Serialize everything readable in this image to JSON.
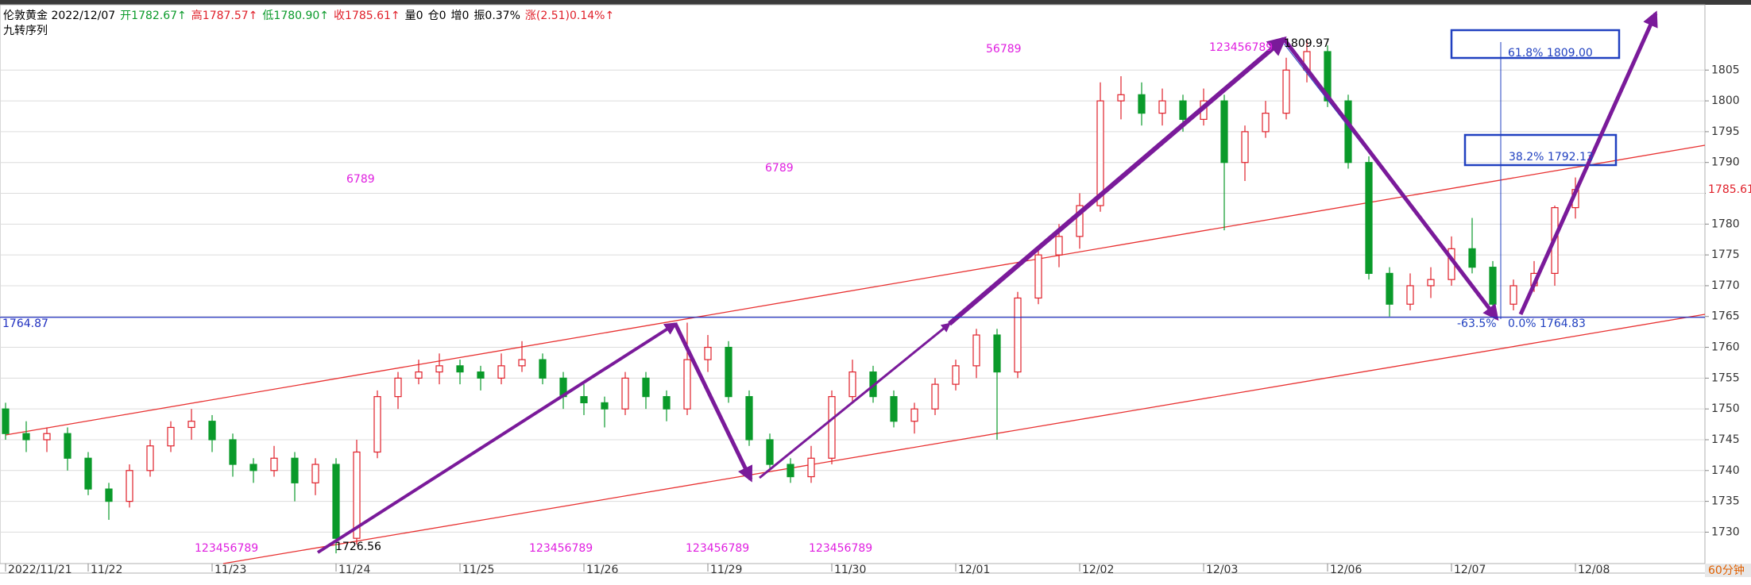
{
  "chart_data": {
    "type": "candlestick",
    "title_segments": [
      {
        "text": "伦敦黄金 2022/12/07",
        "color": "#000000"
      },
      {
        "text": "开1782.67↑",
        "color": "#0a9a2a"
      },
      {
        "text": "高1787.57↑",
        "color": "#e0202a"
      },
      {
        "text": "低1780.90↑",
        "color": "#0a9a2a"
      },
      {
        "text": "收1785.61↑",
        "color": "#e0202a"
      },
      {
        "text": "量0",
        "color": "#000000"
      },
      {
        "text": "仓0",
        "color": "#000000"
      },
      {
        "text": "增0",
        "color": "#000000"
      },
      {
        "text": "振0.37%",
        "color": "#000000"
      },
      {
        "text": "涨(2.51)0.14%↑",
        "color": "#e0202a"
      }
    ],
    "subtitle": "九转序列",
    "period": "60分钟",
    "categories": [
      "2022/11/21",
      null,
      null,
      null,
      "11/22",
      null,
      null,
      null,
      null,
      null,
      "11/23",
      null,
      null,
      null,
      null,
      null,
      "11/24",
      null,
      null,
      null,
      null,
      null,
      "11/25",
      null,
      null,
      null,
      null,
      null,
      "11/26",
      null,
      null,
      null,
      null,
      null,
      "11/29",
      null,
      null,
      null,
      null,
      null,
      "11/30",
      null,
      null,
      null,
      null,
      null,
      "12/01",
      null,
      null,
      null,
      null,
      null,
      "12/02",
      null,
      null,
      null,
      null,
      null,
      "12/03",
      null,
      null,
      null,
      null,
      null,
      "12/06",
      null,
      null,
      null,
      null,
      null,
      "12/07",
      null,
      null,
      null,
      null,
      null,
      "12/08"
    ],
    "open": [
      1750,
      1746,
      1745,
      1746,
      1742,
      1737,
      1735,
      1740,
      1744,
      1747,
      1748,
      1745,
      1741,
      1740,
      1742,
      1738,
      1741,
      1729,
      1743,
      1752,
      1755,
      1756,
      1757,
      1756,
      1755,
      1757,
      1758,
      1755,
      1752,
      1751,
      1750,
      1755,
      1752,
      1750,
      1758,
      1760,
      1752,
      1745,
      1741,
      1739,
      1742,
      1752,
      1756,
      1752,
      1748,
      1750,
      1754,
      1757,
      1762,
      1756,
      1768,
      1775,
      1778,
      1783,
      1800,
      1801,
      1798,
      1800,
      1797,
      1800,
      1790,
      1795,
      1798,
      1805,
      1808,
      1800,
      1790,
      1772,
      1767,
      1770,
      1771,
      1776,
      1773,
      1767,
      1770,
      1772,
      1782.67
    ],
    "high": [
      1751,
      1748,
      1747,
      1747,
      1743,
      1738,
      1741,
      1745,
      1748,
      1750,
      1749,
      1746,
      1742,
      1744,
      1743,
      1742,
      1742,
      1745,
      1753,
      1756,
      1758,
      1759,
      1758,
      1757,
      1759,
      1761,
      1759,
      1756,
      1754,
      1752,
      1756,
      1756,
      1753,
      1764,
      1762,
      1761,
      1753,
      1746,
      1742,
      1744,
      1753,
      1758,
      1757,
      1753,
      1751,
      1755,
      1758,
      1763,
      1763,
      1769,
      1776,
      1780,
      1785,
      1803,
      1804,
      1803,
      1802,
      1801,
      1802,
      1801,
      1796,
      1800,
      1807,
      1809.97,
      1809,
      1801,
      1791,
      1773,
      1772,
      1773,
      1778,
      1781,
      1774,
      1771,
      1774,
      1783,
      1787.57
    ],
    "low": [
      1745,
      1743,
      1743,
      1740,
      1736,
      1732,
      1734,
      1739,
      1743,
      1745,
      1743,
      1739,
      1738,
      1739,
      1735,
      1736,
      1726.56,
      1728,
      1742,
      1750,
      1754,
      1754,
      1754,
      1753,
      1754,
      1756,
      1754,
      1750,
      1749,
      1747,
      1749,
      1750,
      1748,
      1749,
      1756,
      1751,
      1744,
      1740,
      1738,
      1738,
      1741,
      1751,
      1751,
      1747,
      1746,
      1749,
      1753,
      1755,
      1745,
      1755,
      1767,
      1773,
      1776,
      1782,
      1797,
      1796,
      1796,
      1795,
      1796,
      1779,
      1787,
      1794,
      1797,
      1803,
      1799,
      1789,
      1771,
      1765,
      1766,
      1768,
      1770,
      1772,
      1766,
      1766,
      1769,
      1770,
      1780.9
    ],
    "close": [
      1746,
      1745,
      1746,
      1742,
      1737,
      1735,
      1740,
      1744,
      1747,
      1748,
      1745,
      1741,
      1740,
      1742,
      1738,
      1741,
      1729,
      1743,
      1752,
      1755,
      1756,
      1757,
      1756,
      1755,
      1757,
      1758,
      1755,
      1752,
      1751,
      1750,
      1755,
      1752,
      1750,
      1758,
      1760,
      1752,
      1745,
      1741,
      1739,
      1742,
      1752,
      1756,
      1752,
      1748,
      1750,
      1754,
      1757,
      1762,
      1756,
      1768,
      1775,
      1778,
      1783,
      1800,
      1801,
      1798,
      1800,
      1797,
      1800,
      1790,
      1795,
      1798,
      1805,
      1808,
      1800,
      1790,
      1772,
      1767,
      1770,
      1771,
      1776,
      1773,
      1767,
      1770,
      1772,
      1782.67,
      1785.61
    ],
    "up_color": "#e0202a",
    "down_color": "#0a9a2a",
    "ylim": [
      1724.9,
      1815.6
    ],
    "yticks": [
      1730,
      1735,
      1740,
      1745,
      1750,
      1755,
      1760,
      1765,
      1770,
      1775,
      1780,
      1785,
      1790,
      1795,
      1800,
      1805
    ],
    "grid": true,
    "hline": 1764.87,
    "annotations": [
      {
        "text": "1726.56",
        "color": "#000000"
      },
      {
        "text": "1809.97",
        "color": "#000000"
      },
      {
        "text": "61.8% 1809.00",
        "color": "#2040c0"
      },
      {
        "text": "38.2% 1792.13",
        "color": "#2040c0"
      },
      {
        "text": "-63.5%",
        "color": "#2040c0"
      },
      {
        "text": "0.0% 1764.83",
        "color": "#2040c0"
      },
      {
        "text": "123456789",
        "color": "#e020e0"
      },
      {
        "text": "123456789",
        "color": "#e020e0"
      },
      {
        "text": "123456789",
        "color": "#e020e0"
      },
      {
        "text": "123456789",
        "color": "#e020e0"
      },
      {
        "text": "123456789",
        "color": "#e020e0"
      },
      {
        "text": "56789",
        "color": "#e020e0"
      },
      {
        "text": "6789",
        "color": "#e020e0"
      },
      {
        "text": "6789",
        "color": "#e020e0"
      }
    ]
  }
}
